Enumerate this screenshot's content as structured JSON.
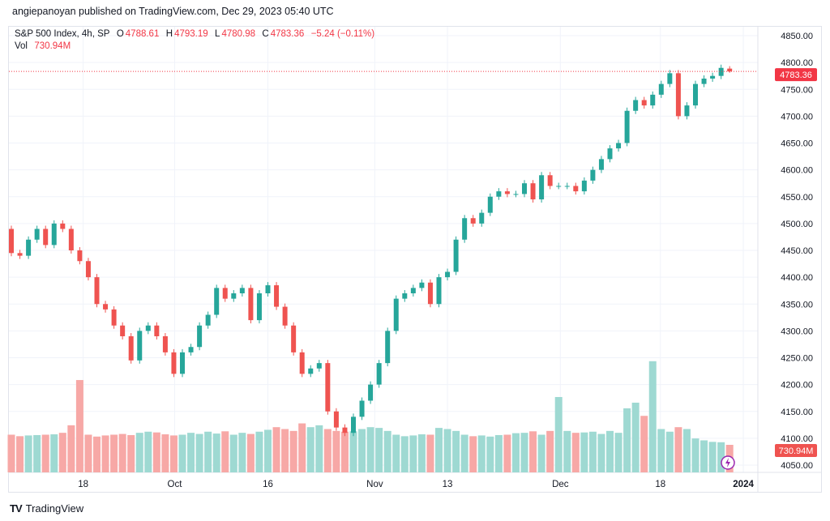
{
  "header": {
    "published": "angiepanoyan published on TradingView.com, Dec 29, 2023 05:40 UTC"
  },
  "legend": {
    "symbol": "S&P 500 Index, 4h, SP",
    "o_label": "O",
    "o": "4788.61",
    "h_label": "H",
    "h": "4793.19",
    "l_label": "L",
    "l": "4780.98",
    "c_label": "C",
    "c": "4783.36",
    "change": "−5.24 (−0.11%)",
    "vol_label": "Vol",
    "vol": "730.94M"
  },
  "footer": {
    "brand": "TradingView"
  },
  "colors": {
    "up": "#26a69a",
    "down": "#ef5350",
    "up_vol": "#9ed9d2",
    "down_vol": "#f7a8a6",
    "last": "#f23645"
  },
  "chart_data": {
    "type": "candlestick",
    "title": "S&P 500 Index, 4h, SP",
    "ylim": [
      4020,
      4870
    ],
    "y_ticks": [
      "4850.00",
      "4800.00",
      "4750.00",
      "4700.00",
      "4650.00",
      "4600.00",
      "4550.00",
      "4500.00",
      "4450.00",
      "4400.00",
      "4350.00",
      "4300.00",
      "4250.00",
      "4200.00",
      "4150.00",
      "4100.00",
      "4050.00"
    ],
    "x_ticks": [
      {
        "label": "18",
        "index": 8.4
      },
      {
        "label": "Oct",
        "index": 19.1
      },
      {
        "label": "16",
        "index": 30
      },
      {
        "label": "Nov",
        "index": 42.5
      },
      {
        "label": "13",
        "index": 51
      },
      {
        "label": "Dec",
        "index": 64.2
      },
      {
        "label": "18",
        "index": 75.9
      },
      {
        "label": "2024",
        "index": 85.6,
        "bold": true
      }
    ],
    "first_open": 4490,
    "closes": [
      4445,
      4440,
      4470,
      4490,
      4460,
      4500,
      4490,
      4450,
      4430,
      4400,
      4350,
      4340,
      4310,
      4290,
      4245,
      4300,
      4310,
      4290,
      4260,
      4220,
      4260,
      4270,
      4310,
      4330,
      4380,
      4360,
      4370,
      4380,
      4320,
      4370,
      4385,
      4345,
      4310,
      4260,
      4220,
      4230,
      4240,
      4150,
      4120,
      4110,
      4140,
      4170,
      4200,
      4240,
      4300,
      4360,
      4370,
      4380,
      4390,
      4350,
      4400,
      4410,
      4470,
      4510,
      4500,
      4520,
      4550,
      4560,
      4555,
      4555,
      4575,
      4545,
      4590,
      4570,
      4570,
      4570,
      4560,
      4580,
      4600,
      4620,
      4640,
      4650,
      4710,
      4730,
      4720,
      4740,
      4760,
      4780,
      4700,
      4720,
      4760,
      4770,
      4775,
      4790,
      4783.36
    ],
    "last_candle": {
      "open": 4788.61,
      "high": 4793.19,
      "low": 4780.98,
      "close": 4783.36
    },
    "volumes_m": [
      1000,
      960,
      980,
      990,
      1000,
      1010,
      1050,
      1250,
      2450,
      1000,
      950,
      980,
      1000,
      1020,
      990,
      1050,
      1080,
      1060,
      1010,
      980,
      1000,
      1050,
      1020,
      1080,
      1030,
      1090,
      1000,
      1050,
      1020,
      1080,
      1130,
      1200,
      1150,
      1100,
      1300,
      1200,
      1250,
      1150,
      1100,
      1080,
      1090,
      1150,
      1200,
      1180,
      1100,
      1000,
      960,
      980,
      1010,
      1000,
      1180,
      1150,
      1100,
      1000,
      960,
      980,
      950,
      990,
      1000,
      1040,
      1050,
      1090,
      1000,
      1100,
      2000,
      1100,
      1050,
      1060,
      1080,
      1020,
      1100,
      1050,
      1700,
      1850,
      1500,
      2950,
      1150,
      1080,
      1200,
      1150,
      900,
      850,
      810,
      800,
      730.94
    ],
    "last_price_label": "4783.36",
    "last_volume_label": "730.94M"
  }
}
